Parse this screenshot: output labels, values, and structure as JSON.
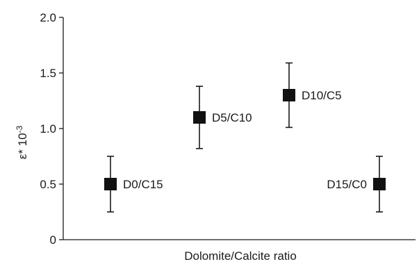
{
  "chart_data": {
    "type": "scatter",
    "xlabel": "Dolomite/Calcite ratio",
    "ylabel": "ε* 10",
    "ylabel_superscript": "-3",
    "ylim": [
      0,
      2.0
    ],
    "yticks": [
      "0",
      "0.5",
      "1.0",
      "1.5",
      "2.0"
    ],
    "grid": false,
    "points": [
      {
        "label": "D0/C15",
        "y": 0.5,
        "err_low": 0.25,
        "err_high": 0.75
      },
      {
        "label": "D5/C10",
        "y": 1.1,
        "err_low": 0.82,
        "err_high": 1.38
      },
      {
        "label": "D10/C5",
        "y": 1.3,
        "err_low": 1.01,
        "err_high": 1.59
      },
      {
        "label": "D15/C0",
        "y": 0.5,
        "err_low": 0.25,
        "err_high": 0.75
      }
    ]
  }
}
